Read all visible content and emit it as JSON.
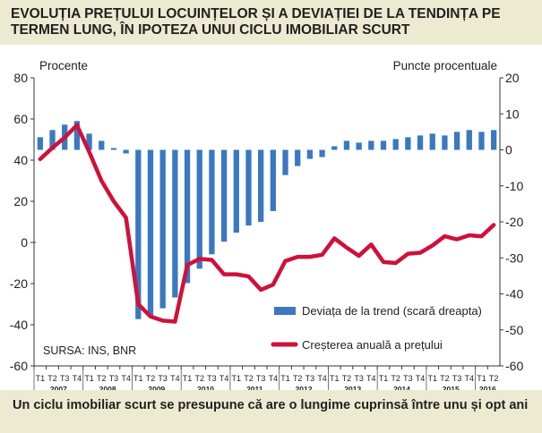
{
  "title": "EVOLUȚIA PREȚULUI LOCUINȚELOR ȘI A DEVIAȚIEI DE LA TENDINȚA PE TERMEN LUNG, ÎN IPOTEZA UNUI CICLU IMOBILIAR SCURT",
  "caption": "Un ciclu imobiliar scurt se presupune că are o lungime cuprinsă între unu și opt ani",
  "source_note": "SURSA: INS, BNR",
  "colors": {
    "bar": "#3a78c1",
    "line": "#d0103a",
    "background": "#ecebd2",
    "text": "#1f1f1f"
  },
  "chart_data": {
    "type": "bar+line",
    "y_left": {
      "label": "Procente",
      "ylim": [
        -60,
        80
      ],
      "ticks": [
        "80",
        "60",
        "40",
        "20",
        "0",
        "-20",
        "-40",
        "-60"
      ]
    },
    "y_right": {
      "label": "Puncte procentuale",
      "ylim": [
        -60,
        20
      ],
      "ticks": [
        "20",
        "10",
        "0",
        "-10",
        "-20",
        "-30",
        "-40",
        "-50",
        "-60"
      ]
    },
    "categories": [
      "T1",
      "T2",
      "T3",
      "T4",
      "T1",
      "T2",
      "T3",
      "T4",
      "T1",
      "T2",
      "T3",
      "T4",
      "T1",
      "T2",
      "T3",
      "T4",
      "T1",
      "T2",
      "T3",
      "T4",
      "T1",
      "T2",
      "T3",
      "T4",
      "T1",
      "T2",
      "T3",
      "T4",
      "T1",
      "T2",
      "T3",
      "T4",
      "T1",
      "T2",
      "T3",
      "T4",
      "T1",
      "T2"
    ],
    "years": [
      {
        "label": "2007",
        "start": 0,
        "end": 3
      },
      {
        "label": "2008",
        "start": 4,
        "end": 7
      },
      {
        "label": "2009",
        "start": 8,
        "end": 11
      },
      {
        "label": "2010",
        "start": 12,
        "end": 15
      },
      {
        "label": "2011",
        "start": 16,
        "end": 19
      },
      {
        "label": "2012",
        "start": 20,
        "end": 23
      },
      {
        "label": "2013",
        "start": 24,
        "end": 27
      },
      {
        "label": "2014",
        "start": 28,
        "end": 31
      },
      {
        "label": "2015",
        "start": 32,
        "end": 35
      },
      {
        "label": "2016",
        "start": 36,
        "end": 37
      }
    ],
    "series": [
      {
        "name": "Deviața de la trend (scară dreapta)",
        "type": "bar",
        "axis": "right",
        "values": [
          3.5,
          5.5,
          7.0,
          8.0,
          4.5,
          2.5,
          0.5,
          -1.0,
          -47.0,
          -46.0,
          -44.0,
          -41.0,
          -37.0,
          -33.0,
          -29.0,
          -25.5,
          -23.0,
          -21.0,
          -20.0,
          -17.0,
          -7.0,
          -4.5,
          -2.5,
          -2.0,
          1.0,
          2.5,
          2.0,
          2.5,
          2.5,
          3.0,
          3.5,
          4.0,
          4.5,
          4.0,
          5.0,
          5.5,
          5.0,
          5.5
        ]
      },
      {
        "name": "Creșterea anuală a prețului",
        "type": "line",
        "axis": "left",
        "values": [
          40.5,
          46.0,
          51.0,
          57.0,
          44.0,
          30.0,
          20.0,
          12.0,
          -30.0,
          -36.0,
          -38.0,
          -38.5,
          -11.0,
          -8.0,
          -8.5,
          -15.5,
          -15.5,
          -16.5,
          -23.0,
          -20.5,
          -9.0,
          -7.0,
          -7.0,
          -6.0,
          2.0,
          -2.5,
          -6.5,
          -1.0,
          -9.5,
          -10.0,
          -5.5,
          -5.0,
          -1.5,
          3.0,
          1.5,
          3.5,
          3.0,
          8.5
        ]
      }
    ],
    "legend_position": "bottom-right",
    "grid": false
  }
}
